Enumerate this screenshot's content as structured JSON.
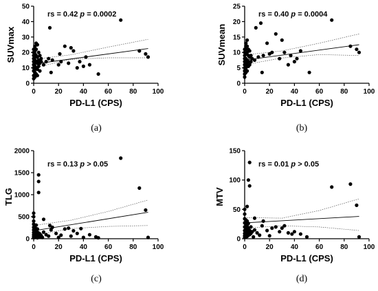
{
  "chart_data": [
    {
      "type": "scatter",
      "caption": "(a)",
      "xlabel": "PD-L1 (CPS)",
      "ylabel": "SUVmax",
      "stat_text": "rs = 0.42",
      "p_text": "p = 0.0002",
      "xlim": [
        0,
        100
      ],
      "ylim": [
        0,
        50
      ],
      "xticks": [
        0,
        20,
        40,
        60,
        80,
        100
      ],
      "yticks": [
        0,
        10,
        20,
        30,
        40,
        50
      ],
      "fit": [
        [
          0,
          12.5
        ],
        [
          92,
          22.5
        ]
      ],
      "ci_upper": [
        [
          0,
          15.5
        ],
        [
          30,
          18.5
        ],
        [
          60,
          23.5
        ],
        [
          92,
          28.5
        ]
      ],
      "ci_lower": [
        [
          0,
          10
        ],
        [
          30,
          15.5
        ],
        [
          60,
          16.5
        ],
        [
          92,
          16.5
        ]
      ],
      "points": [
        [
          0,
          3
        ],
        [
          0,
          5
        ],
        [
          0,
          8
        ],
        [
          0,
          10
        ],
        [
          0,
          12
        ],
        [
          0,
          14
        ],
        [
          0,
          16
        ],
        [
          0,
          18
        ],
        [
          0,
          20
        ],
        [
          0,
          22
        ],
        [
          1,
          4
        ],
        [
          1,
          7
        ],
        [
          1,
          9
        ],
        [
          1,
          11
        ],
        [
          1,
          13
        ],
        [
          1,
          15
        ],
        [
          1,
          17
        ],
        [
          1,
          19
        ],
        [
          1,
          21
        ],
        [
          1,
          24
        ],
        [
          2,
          6
        ],
        [
          2,
          10
        ],
        [
          2,
          14
        ],
        [
          2,
          18
        ],
        [
          2,
          22
        ],
        [
          2,
          26
        ],
        [
          3,
          5
        ],
        [
          3,
          9
        ],
        [
          3,
          13
        ],
        [
          3,
          17
        ],
        [
          3,
          25
        ],
        [
          4,
          11
        ],
        [
          4,
          15
        ],
        [
          4,
          20
        ],
        [
          5,
          8
        ],
        [
          5,
          13
        ],
        [
          5,
          18
        ],
        [
          6,
          14
        ],
        [
          6,
          16
        ],
        [
          8,
          12
        ],
        [
          10,
          14
        ],
        [
          12,
          16
        ],
        [
          13,
          36
        ],
        [
          14,
          7
        ],
        [
          15,
          15
        ],
        [
          20,
          12
        ],
        [
          21,
          19
        ],
        [
          22,
          14
        ],
        [
          25,
          24
        ],
        [
          28,
          13
        ],
        [
          30,
          23
        ],
        [
          32,
          21
        ],
        [
          35,
          10
        ],
        [
          37,
          14
        ],
        [
          40,
          11
        ],
        [
          42,
          17
        ],
        [
          45,
          12
        ],
        [
          52,
          6
        ],
        [
          70,
          41
        ],
        [
          85,
          21
        ],
        [
          90,
          19
        ],
        [
          92,
          17
        ]
      ]
    },
    {
      "type": "scatter",
      "caption": "(b)",
      "xlabel": "PD-L1 (CPS)",
      "ylabel": "SUVmean",
      "stat_text": "rs = 0.40",
      "p_text": "p = 0.0004",
      "xlim": [
        0,
        100
      ],
      "ylim": [
        0,
        25
      ],
      "xticks": [
        0,
        20,
        40,
        60,
        80,
        100
      ],
      "yticks": [
        0,
        5,
        10,
        15,
        20,
        25
      ],
      "fit": [
        [
          0,
          7.5
        ],
        [
          92,
          12.5
        ]
      ],
      "ci_upper": [
        [
          0,
          9.2
        ],
        [
          30,
          10.5
        ],
        [
          60,
          13
        ],
        [
          92,
          16
        ]
      ],
      "ci_lower": [
        [
          0,
          6
        ],
        [
          30,
          8.2
        ],
        [
          60,
          9.3
        ],
        [
          92,
          9
        ]
      ],
      "points": [
        [
          0,
          2
        ],
        [
          0,
          3
        ],
        [
          0,
          4
        ],
        [
          0,
          5
        ],
        [
          0,
          6
        ],
        [
          0,
          7
        ],
        [
          0,
          8
        ],
        [
          0,
          9
        ],
        [
          0,
          10
        ],
        [
          0,
          11
        ],
        [
          1,
          3.5
        ],
        [
          1,
          5
        ],
        [
          1,
          6.5
        ],
        [
          1,
          8
        ],
        [
          1,
          9.5
        ],
        [
          1,
          11
        ],
        [
          1,
          12
        ],
        [
          1,
          13
        ],
        [
          2,
          4
        ],
        [
          2,
          6
        ],
        [
          2,
          7.5
        ],
        [
          2,
          10
        ],
        [
          2,
          12
        ],
        [
          2,
          14
        ],
        [
          3,
          5.5
        ],
        [
          3,
          7
        ],
        [
          3,
          9
        ],
        [
          3,
          11
        ],
        [
          4,
          6
        ],
        [
          4,
          8.5
        ],
        [
          4,
          10.5
        ],
        [
          5,
          7
        ],
        [
          5,
          9
        ],
        [
          6,
          8
        ],
        [
          8,
          7.5
        ],
        [
          9,
          18
        ],
        [
          11,
          8.5
        ],
        [
          13,
          19.5
        ],
        [
          14,
          3.5
        ],
        [
          15,
          9
        ],
        [
          18,
          13
        ],
        [
          20,
          9.5
        ],
        [
          22,
          10
        ],
        [
          25,
          16
        ],
        [
          28,
          8
        ],
        [
          30,
          14
        ],
        [
          32,
          10
        ],
        [
          35,
          6
        ],
        [
          37,
          9
        ],
        [
          40,
          7
        ],
        [
          42,
          8
        ],
        [
          45,
          10.5
        ],
        [
          52,
          3.5
        ],
        [
          70,
          20.5
        ],
        [
          85,
          12
        ],
        [
          90,
          11
        ],
        [
          92,
          10
        ]
      ]
    },
    {
      "type": "scatter",
      "caption": "(c)",
      "xlabel": "PD-L1 (CPS)",
      "ylabel": "TLG",
      "stat_text": "rs = 0.13",
      "p_text": "p > 0.05",
      "xlim": [
        0,
        100
      ],
      "ylim": [
        0,
        2000
      ],
      "xticks": [
        0,
        20,
        40,
        60,
        80,
        100
      ],
      "yticks": [
        0,
        500,
        1000,
        1500,
        2000
      ],
      "fit": [
        [
          0,
          180
        ],
        [
          92,
          600
        ]
      ],
      "ci_upper": [
        [
          0,
          300
        ],
        [
          30,
          420
        ],
        [
          60,
          620
        ],
        [
          92,
          880
        ]
      ],
      "ci_lower": [
        [
          0,
          80
        ],
        [
          30,
          230
        ],
        [
          60,
          280
        ],
        [
          92,
          300
        ]
      ],
      "points": [
        [
          0,
          20
        ],
        [
          0,
          50
        ],
        [
          0,
          90
        ],
        [
          0,
          140
        ],
        [
          0,
          200
        ],
        [
          0,
          260
        ],
        [
          0,
          330
        ],
        [
          0,
          400
        ],
        [
          0,
          500
        ],
        [
          0,
          580
        ],
        [
          1,
          30
        ],
        [
          1,
          70
        ],
        [
          1,
          120
        ],
        [
          1,
          180
        ],
        [
          1,
          250
        ],
        [
          2,
          40
        ],
        [
          2,
          100
        ],
        [
          2,
          160
        ],
        [
          2,
          230
        ],
        [
          2,
          310
        ],
        [
          3,
          20
        ],
        [
          3,
          80
        ],
        [
          3,
          150
        ],
        [
          3,
          220
        ],
        [
          4,
          60
        ],
        [
          4,
          130
        ],
        [
          4,
          1450
        ],
        [
          4,
          1300
        ],
        [
          4,
          1050
        ],
        [
          5,
          40
        ],
        [
          5,
          110
        ],
        [
          6,
          70
        ],
        [
          7,
          30
        ],
        [
          8,
          150
        ],
        [
          8,
          440
        ],
        [
          10,
          90
        ],
        [
          12,
          60
        ],
        [
          13,
          300
        ],
        [
          14,
          200
        ],
        [
          15,
          260
        ],
        [
          18,
          120
        ],
        [
          20,
          30
        ],
        [
          22,
          80
        ],
        [
          25,
          220
        ],
        [
          28,
          240
        ],
        [
          30,
          60
        ],
        [
          32,
          180
        ],
        [
          35,
          120
        ],
        [
          38,
          230
        ],
        [
          40,
          30
        ],
        [
          45,
          90
        ],
        [
          50,
          40
        ],
        [
          52,
          20
        ],
        [
          70,
          1830
        ],
        [
          85,
          1150
        ],
        [
          90,
          650
        ],
        [
          92,
          30
        ]
      ]
    },
    {
      "type": "scatter",
      "caption": "(d)",
      "xlabel": "PD-L1 (CPS)",
      "ylabel": "MTV",
      "stat_text": "rs = 0.01",
      "p_text": "p > 0.05",
      "xlim": [
        0,
        100
      ],
      "ylim": [
        0,
        150
      ],
      "xticks": [
        0,
        20,
        40,
        60,
        80,
        100
      ],
      "yticks": [
        0,
        50,
        100,
        150
      ],
      "fit": [
        [
          0,
          27
        ],
        [
          92,
          38
        ]
      ],
      "ci_upper": [
        [
          0,
          36
        ],
        [
          30,
          35
        ],
        [
          60,
          48
        ],
        [
          92,
          68
        ]
      ],
      "ci_lower": [
        [
          0,
          18
        ],
        [
          30,
          22
        ],
        [
          60,
          20
        ],
        [
          92,
          14
        ]
      ],
      "points": [
        [
          0,
          2
        ],
        [
          0,
          5
        ],
        [
          0,
          9
        ],
        [
          0,
          14
        ],
        [
          0,
          20
        ],
        [
          0,
          27
        ],
        [
          0,
          34
        ],
        [
          0,
          42
        ],
        [
          0,
          50
        ],
        [
          1,
          3
        ],
        [
          1,
          8
        ],
        [
          1,
          13
        ],
        [
          1,
          19
        ],
        [
          1,
          25
        ],
        [
          1,
          32
        ],
        [
          2,
          4
        ],
        [
          2,
          10
        ],
        [
          2,
          16
        ],
        [
          2,
          22
        ],
        [
          2,
          30
        ],
        [
          2,
          55
        ],
        [
          3,
          6
        ],
        [
          3,
          12
        ],
        [
          3,
          18
        ],
        [
          3,
          26
        ],
        [
          3,
          100
        ],
        [
          4,
          7
        ],
        [
          4,
          14
        ],
        [
          4,
          130
        ],
        [
          4,
          90
        ],
        [
          5,
          9
        ],
        [
          5,
          20
        ],
        [
          6,
          12
        ],
        [
          7,
          3
        ],
        [
          8,
          15
        ],
        [
          8,
          35
        ],
        [
          10,
          10
        ],
        [
          12,
          6
        ],
        [
          14,
          22
        ],
        [
          15,
          30
        ],
        [
          18,
          14
        ],
        [
          20,
          5
        ],
        [
          22,
          18
        ],
        [
          25,
          20
        ],
        [
          28,
          12
        ],
        [
          30,
          18
        ],
        [
          32,
          22
        ],
        [
          35,
          10
        ],
        [
          38,
          8
        ],
        [
          40,
          12
        ],
        [
          45,
          8
        ],
        [
          50,
          3
        ],
        [
          70,
          88
        ],
        [
          85,
          93
        ],
        [
          90,
          57
        ],
        [
          92,
          3
        ]
      ]
    }
  ]
}
